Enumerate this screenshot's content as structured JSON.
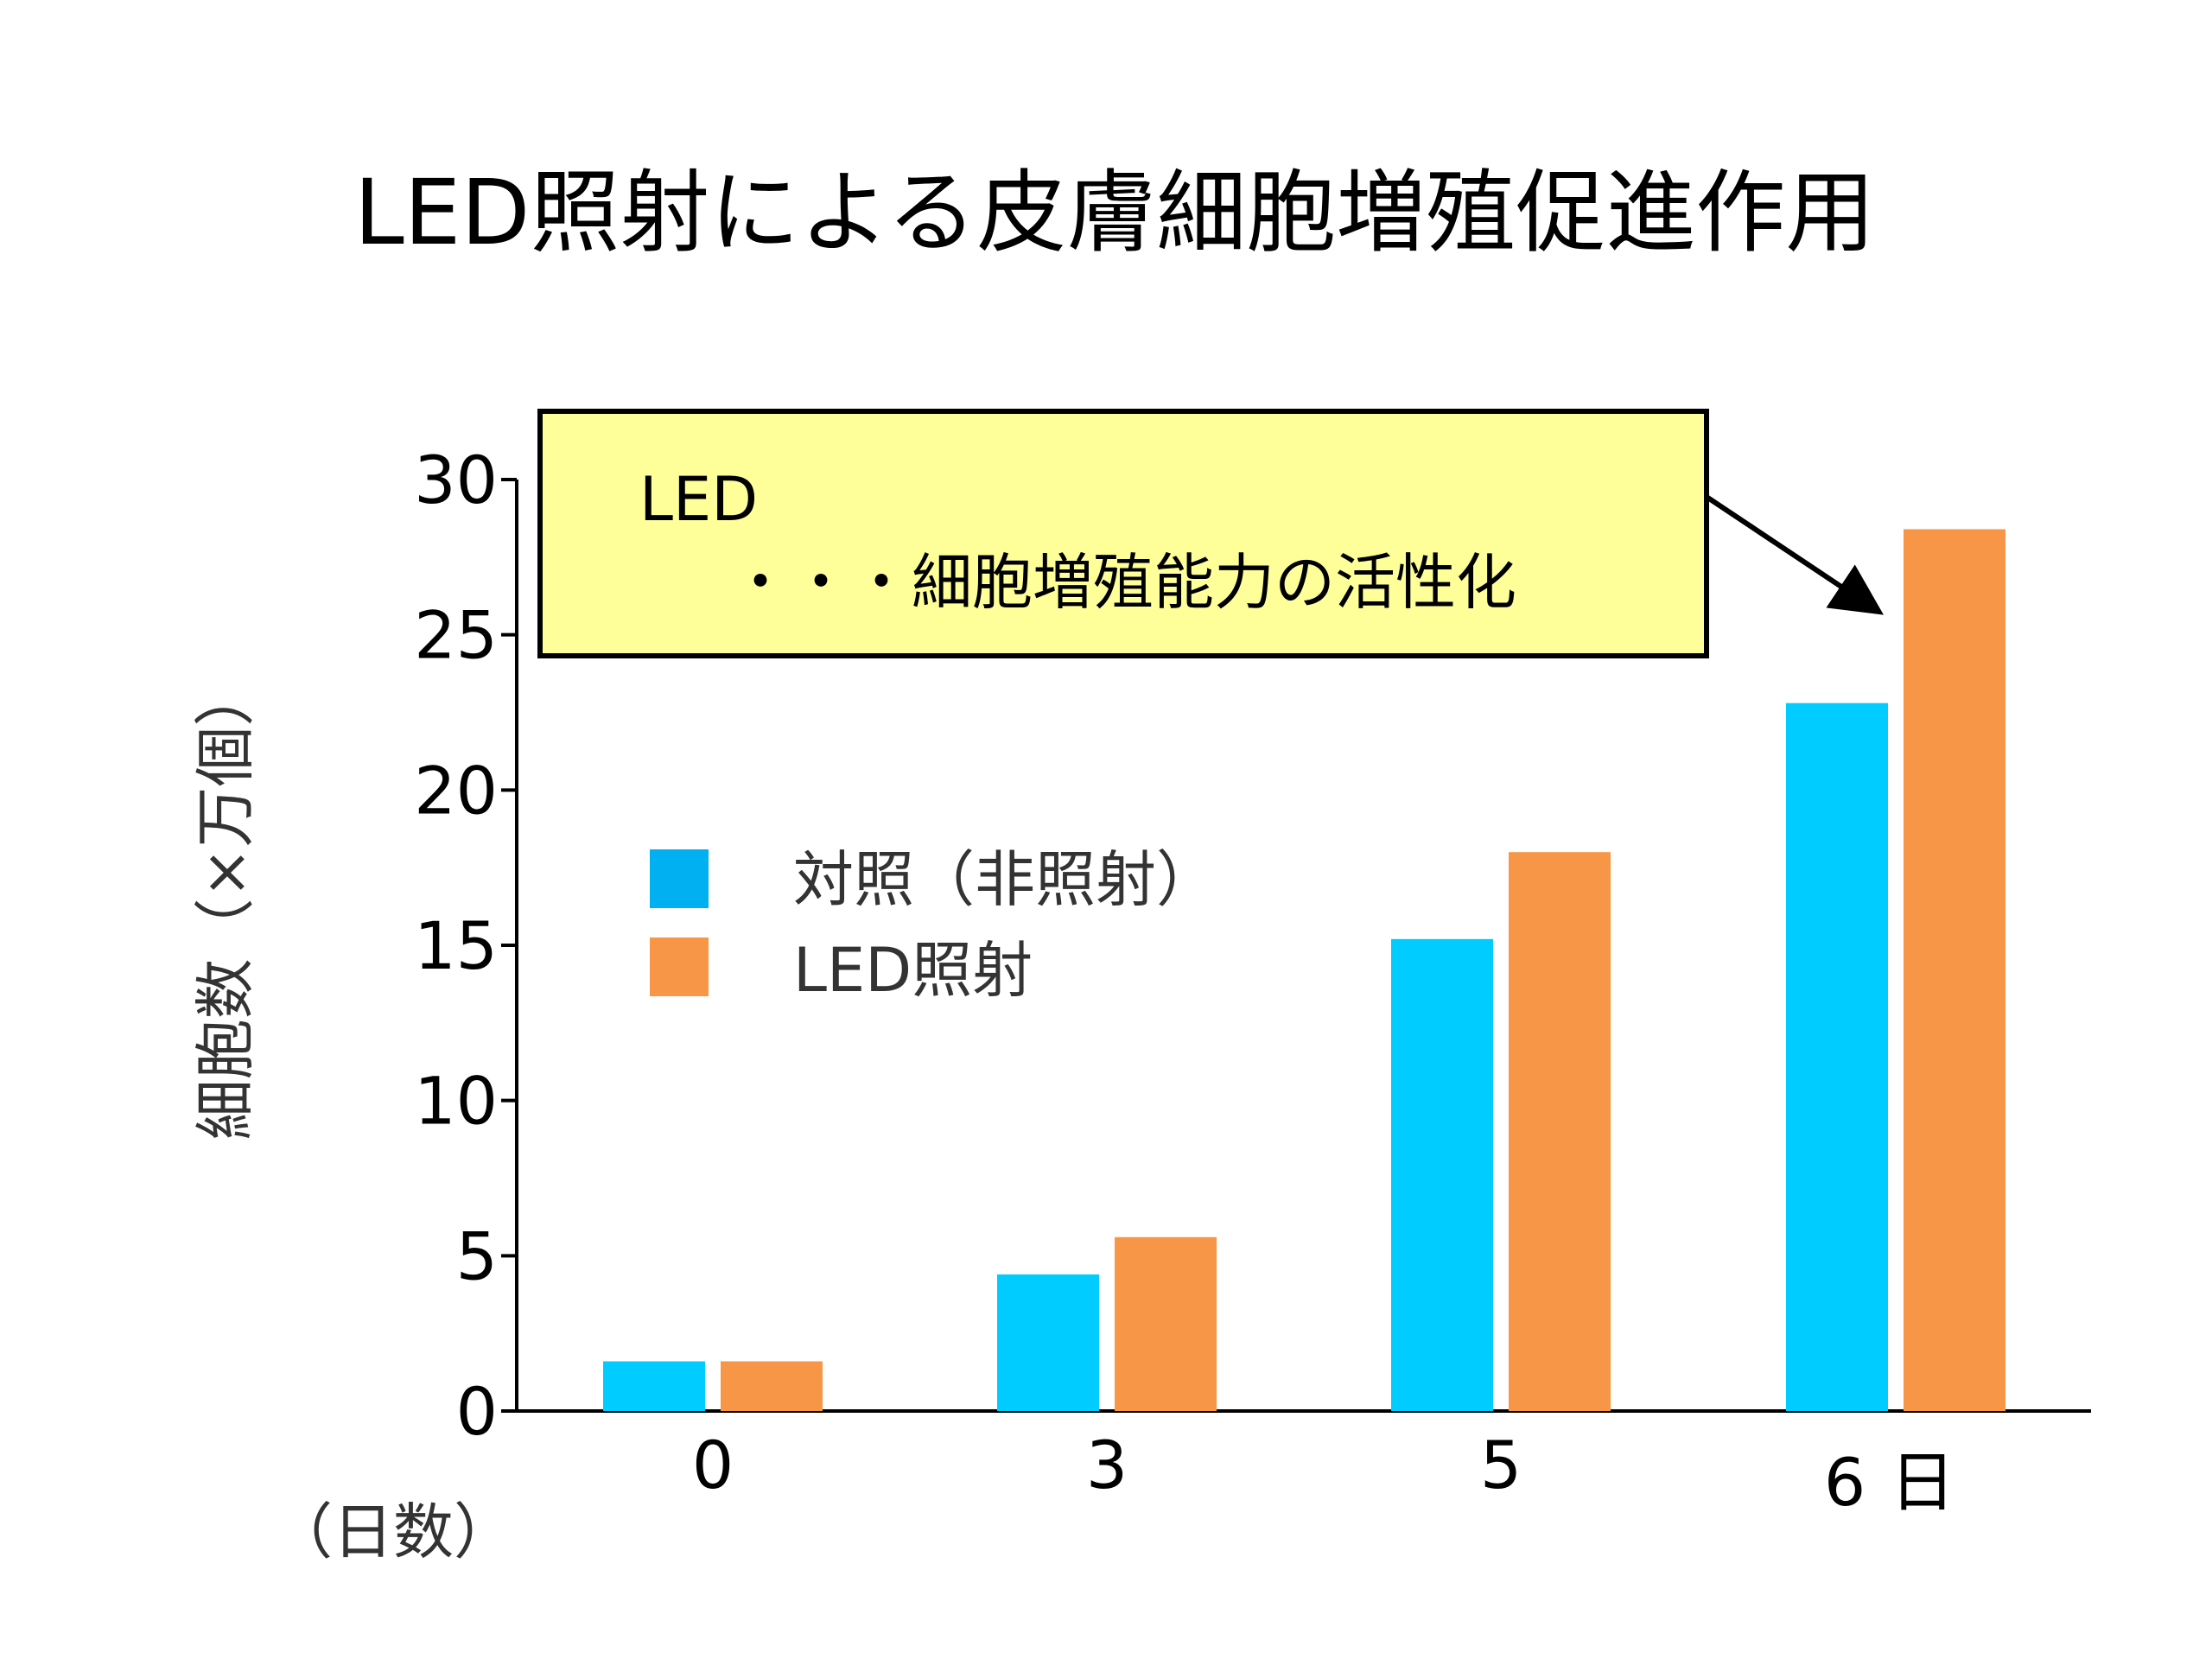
{
  "chart_data": {
    "type": "bar",
    "title": "LED照射による皮膚細胞増殖促進作用",
    "ylabel": "細胞数（×万個）",
    "xlabel": "（日数）",
    "x_unit": "日",
    "categories": [
      "0",
      "3",
      "5",
      "6"
    ],
    "ylim": [
      0,
      30
    ],
    "yticks": [
      0,
      5,
      10,
      15,
      20,
      25,
      30
    ],
    "grid": false,
    "legend_position": "center-left",
    "series": [
      {
        "name": "対照（非照射）",
        "values": [
          1.6,
          4.4,
          15.2,
          22.8
        ],
        "color": "#00ccff"
      },
      {
        "name": "LED照射",
        "values": [
          1.6,
          5.6,
          18.0,
          28.4
        ],
        "color": "#f79646"
      }
    ],
    "legend_swatch_colors": [
      "#00b0f0",
      "#f79646"
    ],
    "annotation": {
      "line1": "LED",
      "line2": "・・・細胞増殖能力の活性化",
      "background": "#ffff99"
    }
  }
}
